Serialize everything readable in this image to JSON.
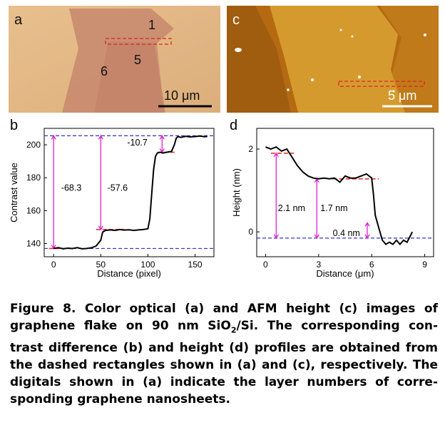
{
  "panel_a": {
    "label": "a",
    "layer_labels": [
      "1",
      "5",
      "6"
    ],
    "scalebar": "10 μm",
    "colors": {
      "background": "#e2b684",
      "flake": "#c98c70",
      "dashed_rect": "#e02424"
    }
  },
  "panel_c": {
    "label": "c",
    "scalebar": "5 μm",
    "colors": {
      "background": "#b56a12",
      "terrace": "#d9a032",
      "dashed_rect": "#e02424"
    }
  },
  "chart_data": [
    {
      "panel": "b",
      "type": "line",
      "xlabel": "Distance (pixel)",
      "ylabel": "Contrast value",
      "xlim": [
        -10,
        170
      ],
      "ylim": [
        132,
        210
      ],
      "xticks": [
        "0",
        "50",
        "100",
        "150"
      ],
      "yticks": [
        "140",
        "160",
        "180",
        "200"
      ],
      "series": [
        {
          "x": [
            0,
            5,
            10,
            15,
            20,
            25,
            30,
            35,
            40,
            45,
            50,
            52,
            55,
            60,
            65,
            70,
            75,
            80,
            85,
            90,
            95,
            100,
            102,
            104,
            106,
            108,
            110,
            113,
            116,
            120,
            125,
            128,
            130,
            132,
            135,
            140,
            145,
            150,
            155,
            160,
            163
          ],
          "y": [
            137,
            137.5,
            136.8,
            137.2,
            137,
            137.5,
            136.8,
            137,
            137.4,
            138.5,
            142,
            147,
            148,
            148.3,
            148,
            148.5,
            148.2,
            148.4,
            148,
            148.3,
            148.5,
            149,
            155,
            170,
            185,
            193,
            195,
            195.5,
            195,
            195.5,
            196,
            200,
            204,
            205,
            204.5,
            205.2,
            204.8,
            205,
            205.3,
            204.9,
            205.1
          ]
        }
      ],
      "reference_lines": [
        {
          "y": 205.5,
          "style": "dashed",
          "color": "#3333cc"
        },
        {
          "y": 137,
          "style": "dashed",
          "color": "#3333cc"
        }
      ],
      "level_marks": [
        {
          "y": 137,
          "x": [
            -5,
            20
          ]
        },
        {
          "y": 148.5,
          "x": [
            45,
            75
          ]
        },
        {
          "y": 195.5,
          "x": [
            110,
            130
          ]
        }
      ],
      "annotations": [
        "-68.3",
        "-57.6",
        "-10.7"
      ],
      "colors": {
        "line": "#000000",
        "arrows": "#e020d0",
        "level_marks": "#e02424"
      }
    },
    {
      "panel": "d",
      "type": "line",
      "xlabel": "Distance (μm)",
      "ylabel": "Height (nm)",
      "xlim": [
        -0.5,
        9.5
      ],
      "ylim": [
        -0.6,
        2.5
      ],
      "xticks": [
        "0",
        "3",
        "6",
        "9"
      ],
      "yticks": [
        "0",
        "2"
      ],
      "series": [
        {
          "x": [
            0,
            0.3,
            0.6,
            0.9,
            1.2,
            1.5,
            1.8,
            2.1,
            2.4,
            2.7,
            3.0,
            3.3,
            3.6,
            3.9,
            4.2,
            4.5,
            4.8,
            5.1,
            5.4,
            5.7,
            6.0,
            6.1,
            6.2,
            6.4,
            6.6,
            6.8,
            7.0,
            7.2,
            7.4,
            7.6,
            7.8,
            8.0,
            8.3
          ],
          "y": [
            2.05,
            2.0,
            2.05,
            1.95,
            2.0,
            1.8,
            1.6,
            1.45,
            1.35,
            1.3,
            1.28,
            1.3,
            1.28,
            1.3,
            1.2,
            1.35,
            1.3,
            1.3,
            1.35,
            1.4,
            1.3,
            0.9,
            0.4,
            0.1,
            -0.2,
            -0.3,
            -0.25,
            -0.3,
            -0.2,
            -0.3,
            -0.2,
            -0.25,
            0.0
          ]
        }
      ],
      "reference_lines": [
        {
          "y": -0.15,
          "style": "dashed",
          "color": "#3333cc"
        }
      ],
      "level_marks": [
        {
          "y": 1.9,
          "x": [
            0.3,
            1.6
          ]
        },
        {
          "y": 1.28,
          "x": [
            3.8,
            6.4
          ]
        }
      ],
      "annotations": [
        "2.1 nm",
        "1.7 nm",
        "0.4 nm"
      ],
      "colors": {
        "line": "#000000",
        "arrows": "#e020d0",
        "level_marks": "#e02424"
      }
    }
  ],
  "caption": {
    "lines": [
      "Figure 8. Color optical (a) and AFM height (c) images of",
      "graphene flake on 90 nm SiO",
      "trast difference (b) and height (d) profiles are obtained from",
      "the dashed rectangles shown in (a) and (c), respectively. The",
      "digitals shown in (a) indicate the layer numbers of corre-",
      "sponding graphene nanosheets."
    ],
    "line2_sub": "2",
    "line2_tail": "/Si. The corresponding con-"
  }
}
